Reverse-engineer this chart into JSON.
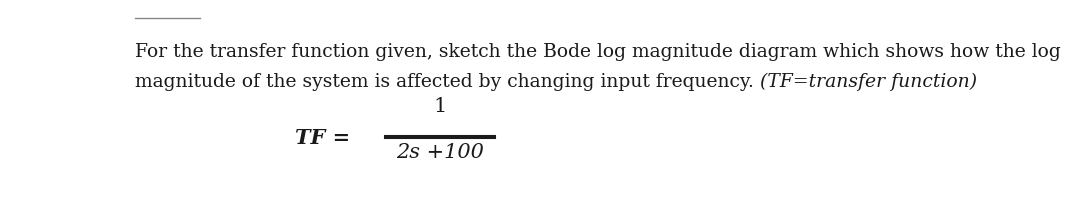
{
  "background_color": "#ffffff",
  "text_line1": "For the transfer function given, sketch the Bode log magnitude diagram which shows how the log",
  "text_line2_normal": "magnitude of the system is affected by changing input frequency. ",
  "text_line2_italic": "(TF=transfer function)",
  "tf_label": "TF =",
  "numerator": "1",
  "denominator": "2s +100",
  "text_color": "#1a1a1a",
  "font_size_body": 13.5,
  "font_size_math": 15,
  "top_line_color": "#555555"
}
